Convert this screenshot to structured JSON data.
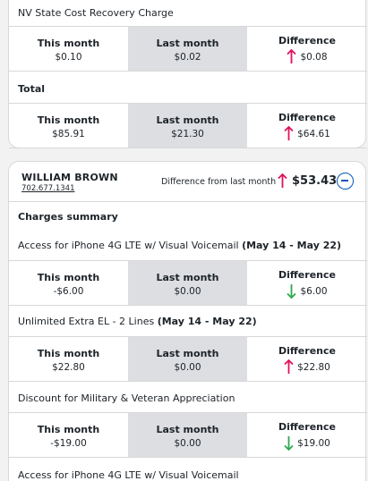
{
  "colors": {
    "up_arrow": "#e0115f",
    "down_arrow": "#2fa84f",
    "accent": "#0057b8",
    "shaded_column": "#dcdee1"
  },
  "headers": {
    "this_month": "This month",
    "last_month": "Last month",
    "difference": "Difference"
  },
  "top_card": {
    "charge_label": "NV State Cost Recovery Charge",
    "charge": {
      "this_month": "$0.10",
      "last_month": "$0.02",
      "difference": "$0.08",
      "direction": "up"
    },
    "total_label": "Total",
    "total": {
      "this_month": "$85.91",
      "last_month": "$21.30",
      "difference": "$64.61",
      "direction": "up"
    }
  },
  "user_card": {
    "name": "WILLIAM BROWN",
    "phone": "702.677.1341",
    "diff_label": "Difference from last month",
    "diff_amount": "$53.43",
    "diff_direction": "up",
    "section_title": "Charges summary",
    "items": [
      {
        "name": "Access for iPhone 4G LTE w/ Visual Voicemail",
        "period": "(May 14 - May 22)",
        "this_month": "-$6.00",
        "last_month": "$0.00",
        "difference": "$6.00",
        "direction": "down"
      },
      {
        "name": "Unlimited Extra EL - 2 Lines",
        "period": "(May 14 - May 22)",
        "this_month": "$22.80",
        "last_month": "$0.00",
        "difference": "$22.80",
        "direction": "up"
      },
      {
        "name": "Discount for Military & Veteran Appreciation",
        "period": "",
        "this_month": "-$19.00",
        "last_month": "$0.00",
        "difference": "$19.00",
        "direction": "down"
      }
    ],
    "next_item_label": "Access for iPhone 4G LTE w/ Visual Voicemail"
  }
}
